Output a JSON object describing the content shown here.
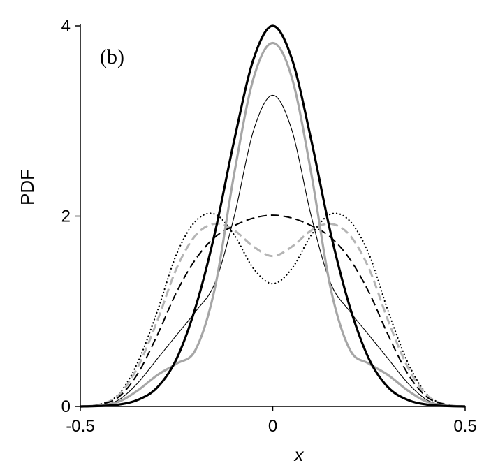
{
  "chart_data": {
    "type": "line",
    "panel_label": "(b)",
    "xlabel": "x",
    "ylabel": "PDF",
    "xlim": [
      -0.5,
      0.5
    ],
    "ylim": [
      0,
      4
    ],
    "xticks": [
      -0.5,
      0,
      0.5
    ],
    "xtick_labels": [
      "-0.5",
      "0",
      "0.5"
    ],
    "yticks": [
      0,
      2,
      4
    ],
    "ytick_labels": [
      "0",
      "2",
      "4"
    ],
    "grid": false,
    "legend": "none",
    "series": [
      {
        "style": "solid",
        "color": "#000000",
        "width": 3.2,
        "x": [
          -0.5,
          -0.45,
          -0.4,
          -0.35,
          -0.3,
          -0.25,
          -0.2,
          -0.15,
          -0.1,
          -0.05,
          0,
          0.05,
          0.1,
          0.15,
          0.2,
          0.25,
          0.3,
          0.35,
          0.4,
          0.45,
          0.5
        ],
        "y": [
          0,
          0.005,
          0.02,
          0.07,
          0.2,
          0.5,
          1.05,
          1.83,
          2.8,
          3.65,
          4.0,
          3.65,
          2.8,
          1.83,
          1.05,
          0.5,
          0.2,
          0.07,
          0.02,
          0.005,
          0
        ]
      },
      {
        "style": "solid",
        "color": "#a6a6a6",
        "width": 3.2,
        "x": [
          -0.5,
          -0.45,
          -0.4,
          -0.35,
          -0.3,
          -0.25,
          -0.2,
          -0.15,
          -0.1,
          -0.05,
          0,
          0.05,
          0.1,
          0.15,
          0.2,
          0.25,
          0.3,
          0.35,
          0.4,
          0.45,
          0.5
        ],
        "y": [
          0,
          0.01,
          0.05,
          0.17,
          0.33,
          0.45,
          0.6,
          1.25,
          2.45,
          3.45,
          3.82,
          3.45,
          2.45,
          1.25,
          0.6,
          0.45,
          0.33,
          0.17,
          0.05,
          0.01,
          0
        ]
      },
      {
        "style": "solid",
        "color": "#000000",
        "width": 1.1,
        "x": [
          -0.5,
          -0.45,
          -0.4,
          -0.35,
          -0.3,
          -0.25,
          -0.2,
          -0.15,
          -0.1,
          -0.05,
          0,
          0.05,
          0.1,
          0.15,
          0.2,
          0.25,
          0.3,
          0.35,
          0.4,
          0.45,
          0.5
        ],
        "y": [
          0,
          0.01,
          0.07,
          0.25,
          0.5,
          0.75,
          1.0,
          1.3,
          2.0,
          2.9,
          3.27,
          2.9,
          2.0,
          1.3,
          1.0,
          0.75,
          0.5,
          0.25,
          0.07,
          0.01,
          0
        ]
      },
      {
        "style": "dashed",
        "color": "#000000",
        "width": 2.0,
        "x": [
          -0.5,
          -0.45,
          -0.4,
          -0.35,
          -0.3,
          -0.25,
          -0.2,
          -0.15,
          -0.1,
          -0.05,
          0,
          0.05,
          0.1,
          0.15,
          0.2,
          0.25,
          0.3,
          0.35,
          0.4,
          0.45,
          0.5
        ],
        "y": [
          0,
          0.02,
          0.1,
          0.35,
          0.75,
          1.2,
          1.55,
          1.78,
          1.9,
          1.98,
          2.01,
          1.98,
          1.9,
          1.78,
          1.55,
          1.2,
          0.75,
          0.35,
          0.1,
          0.02,
          0
        ]
      },
      {
        "style": "dashed",
        "color": "#b5b5b5",
        "width": 3.0,
        "x": [
          -0.5,
          -0.45,
          -0.4,
          -0.35,
          -0.3,
          -0.25,
          -0.2,
          -0.15,
          -0.1,
          -0.05,
          0,
          0.05,
          0.1,
          0.15,
          0.2,
          0.25,
          0.3,
          0.35,
          0.4,
          0.45,
          0.5
        ],
        "y": [
          0,
          0.02,
          0.12,
          0.42,
          0.9,
          1.45,
          1.8,
          1.92,
          1.85,
          1.68,
          1.58,
          1.68,
          1.85,
          1.92,
          1.8,
          1.45,
          0.9,
          0.42,
          0.12,
          0.02,
          0
        ]
      },
      {
        "style": "dotted",
        "color": "#000000",
        "width": 2.2,
        "x": [
          -0.5,
          -0.45,
          -0.4,
          -0.35,
          -0.3,
          -0.25,
          -0.2,
          -0.15,
          -0.1,
          -0.05,
          0,
          0.05,
          0.1,
          0.15,
          0.2,
          0.25,
          0.3,
          0.35,
          0.4,
          0.45,
          0.5
        ],
        "y": [
          0,
          0.02,
          0.13,
          0.47,
          1.0,
          1.6,
          1.95,
          2.02,
          1.8,
          1.45,
          1.29,
          1.45,
          1.8,
          2.02,
          1.95,
          1.6,
          1.0,
          0.47,
          0.13,
          0.02,
          0
        ]
      }
    ]
  }
}
